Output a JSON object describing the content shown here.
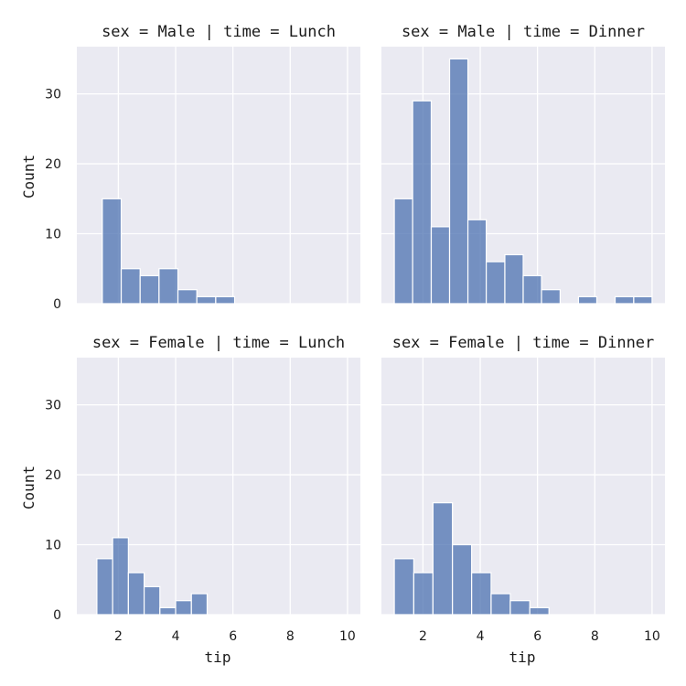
{
  "chart_data": {
    "type": "bar",
    "xlabel": "tip",
    "ylabel": "Count",
    "xlim": [
      0.55,
      10.45
    ],
    "ylim": [
      0,
      36.75
    ],
    "xticks": [
      "2",
      "4",
      "6",
      "8",
      "10"
    ],
    "yticks": [
      "0",
      "10",
      "20",
      "30"
    ],
    "grid": true,
    "colors": {
      "bar": "#4c72b0",
      "panel_bg": "#eaeaf2",
      "grid": "#ffffff"
    },
    "facets": [
      {
        "title": "sex = Male | time = Lunch",
        "bars": [
          {
            "x0": 1.44,
            "x1": 2.1,
            "count": 15
          },
          {
            "x0": 2.1,
            "x1": 2.76,
            "count": 5
          },
          {
            "x0": 2.76,
            "x1": 3.42,
            "count": 4
          },
          {
            "x0": 3.42,
            "x1": 4.08,
            "count": 5
          },
          {
            "x0": 4.08,
            "x1": 4.74,
            "count": 2
          },
          {
            "x0": 4.74,
            "x1": 5.4,
            "count": 1
          },
          {
            "x0": 5.4,
            "x1": 6.06,
            "count": 1
          }
        ]
      },
      {
        "title": "sex = Male | time = Dinner",
        "bars": [
          {
            "x0": 1.0,
            "x1": 1.64,
            "count": 15
          },
          {
            "x0": 1.64,
            "x1": 2.29,
            "count": 29
          },
          {
            "x0": 2.29,
            "x1": 2.93,
            "count": 11
          },
          {
            "x0": 2.93,
            "x1": 3.57,
            "count": 35
          },
          {
            "x0": 3.57,
            "x1": 4.21,
            "count": 12
          },
          {
            "x0": 4.21,
            "x1": 4.86,
            "count": 6
          },
          {
            "x0": 4.86,
            "x1": 5.5,
            "count": 7
          },
          {
            "x0": 5.5,
            "x1": 6.14,
            "count": 4
          },
          {
            "x0": 6.14,
            "x1": 6.79,
            "count": 2
          },
          {
            "x0": 7.43,
            "x1": 8.07,
            "count": 1
          },
          {
            "x0": 8.71,
            "x1": 9.36,
            "count": 1
          },
          {
            "x0": 9.36,
            "x1": 10.0,
            "count": 1
          }
        ]
      },
      {
        "title": "sex = Female | time = Lunch",
        "bars": [
          {
            "x0": 1.25,
            "x1": 1.8,
            "count": 8
          },
          {
            "x0": 1.8,
            "x1": 2.35,
            "count": 11
          },
          {
            "x0": 2.35,
            "x1": 2.9,
            "count": 6
          },
          {
            "x0": 2.9,
            "x1": 3.45,
            "count": 4
          },
          {
            "x0": 3.45,
            "x1": 4.0,
            "count": 1
          },
          {
            "x0": 4.0,
            "x1": 4.55,
            "count": 2
          },
          {
            "x0": 4.55,
            "x1": 5.1,
            "count": 3
          }
        ]
      },
      {
        "title": "sex = Female | time = Dinner",
        "bars": [
          {
            "x0": 1.0,
            "x1": 1.68,
            "count": 8
          },
          {
            "x0": 1.68,
            "x1": 2.35,
            "count": 6
          },
          {
            "x0": 2.35,
            "x1": 3.03,
            "count": 16
          },
          {
            "x0": 3.03,
            "x1": 3.7,
            "count": 10
          },
          {
            "x0": 3.7,
            "x1": 4.38,
            "count": 6
          },
          {
            "x0": 4.38,
            "x1": 5.05,
            "count": 3
          },
          {
            "x0": 5.05,
            "x1": 5.73,
            "count": 2
          },
          {
            "x0": 5.73,
            "x1": 6.4,
            "count": 1
          }
        ]
      }
    ]
  }
}
